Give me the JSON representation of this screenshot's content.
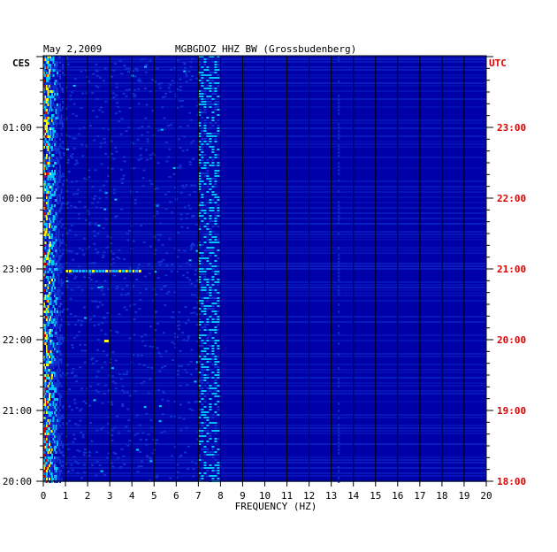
{
  "header": {
    "date": "May 2,2009",
    "station": "MGBGDOZ HHZ BW (Grossbudenberg)"
  },
  "chart_data": {
    "type": "heatmap",
    "title": "MGBGDOZ HHZ BW (Grossbudenberg)",
    "xlabel": "FREQUENCY (HZ)",
    "left_timezone": "CES",
    "right_timezone": "UTC",
    "xlim": [
      0,
      20
    ],
    "x_ticks": [
      0,
      1,
      2,
      3,
      4,
      5,
      6,
      7,
      8,
      9,
      10,
      11,
      12,
      13,
      14,
      15,
      16,
      17,
      18,
      19,
      20
    ],
    "left_time_labels": [
      "20:00",
      "21:00",
      "22:00",
      "23:00",
      "00:00",
      "01:00"
    ],
    "right_time_labels": [
      "18:00",
      "19:00",
      "20:00",
      "21:00",
      "22:00",
      "23:00"
    ],
    "colors": {
      "background": "#0000a8",
      "low": "#1030d0",
      "mid": "#00c8ff",
      "high": "#ffff00",
      "peak": "#e00000",
      "utc_text": "#e00000"
    },
    "features": [
      {
        "type": "low-frequency band",
        "x_range": [
          0,
          0.8
        ],
        "intensity": "high"
      },
      {
        "type": "harmonic band",
        "x_range": [
          7.0,
          7.8
        ],
        "intensity": "medium"
      },
      {
        "type": "weak line",
        "x_range": [
          13.2,
          13.4
        ],
        "intensity": "low"
      },
      {
        "type": "transient event",
        "x_range": [
          1.0,
          4.3
        ],
        "time": "23:00",
        "intensity": "medium-high"
      },
      {
        "type": "transient event",
        "x_range": [
          2.7,
          3.0
        ],
        "time": "22:00",
        "intensity": "medium"
      }
    ]
  }
}
